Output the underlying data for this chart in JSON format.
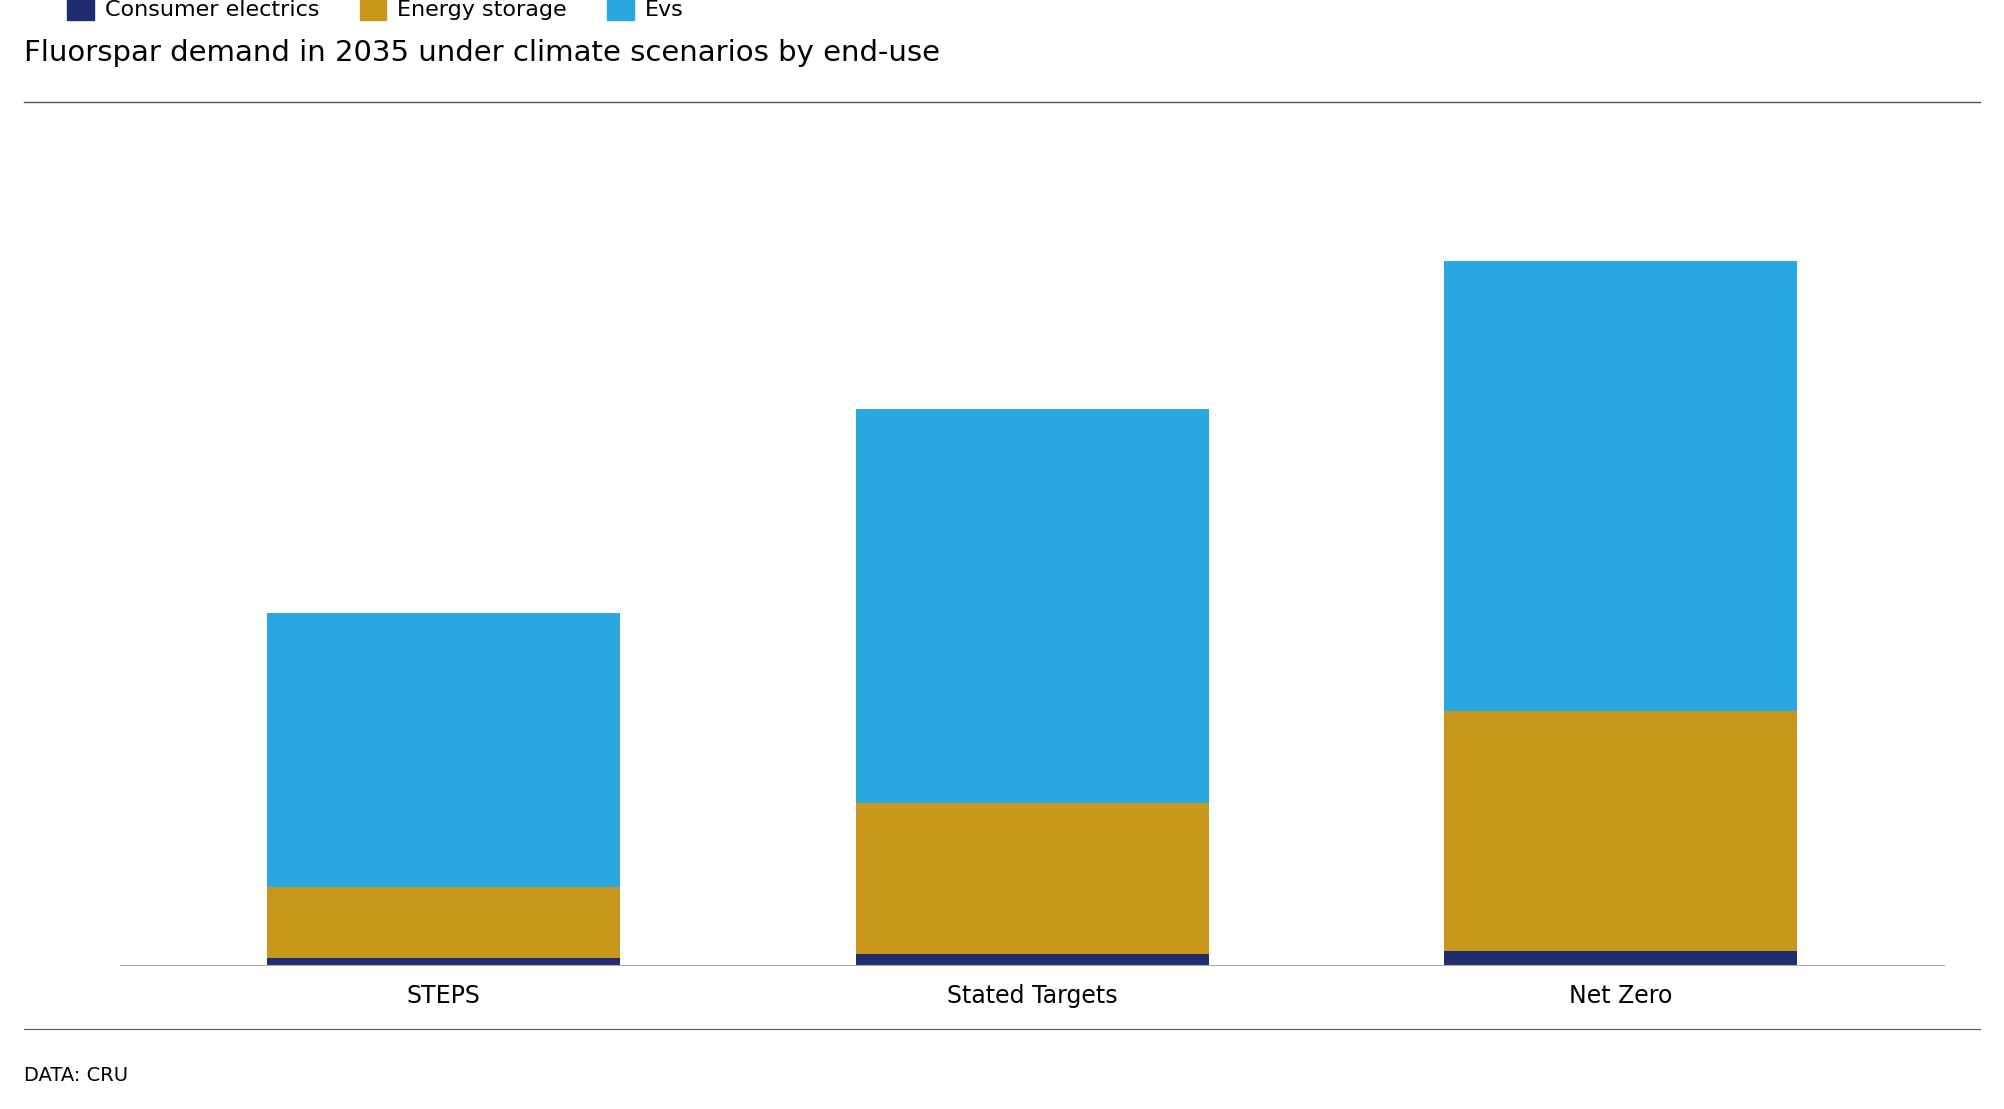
{
  "categories": [
    "STEPS",
    "Stated Targets",
    "Net Zero"
  ],
  "consumer_electrics": [
    2,
    3,
    4
  ],
  "energy_storage": [
    20,
    43,
    68
  ],
  "evs": [
    78,
    112,
    128
  ],
  "colors": {
    "consumer_electrics": "#1f2d6e",
    "energy_storage": "#c9971c",
    "evs": "#29a8e0"
  },
  "legend_labels": [
    "Consumer electrics",
    "Energy storage",
    "Evs"
  ],
  "title": "Fluorspar demand in 2035 under climate scenarios by end-use",
  "source": "DATA: CRU",
  "bar_width": 0.6,
  "background_color": "#ffffff",
  "title_fontsize": 21,
  "label_fontsize": 17,
  "legend_fontsize": 16,
  "source_fontsize": 14
}
